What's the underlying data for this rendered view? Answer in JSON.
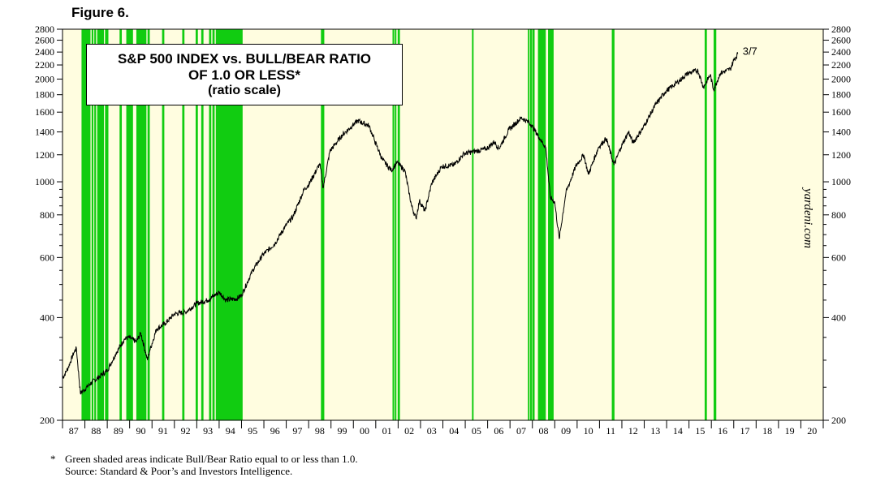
{
  "figure_label": "Figure 6.",
  "title_lines": [
    "S&P 500 INDEX vs. BULL/BEAR RATIO",
    "OF 1.0 OR LESS*",
    "(ratio scale)"
  ],
  "watermark": "yardeni.com",
  "footnote": {
    "star": "*",
    "line1": "Green shaded areas indicate Bull/Bear Ratio equal to or less than 1.0.",
    "line2": "Source: Standard & Poor’s and Investors Intelligence."
  },
  "colors": {
    "plot_bg": "#fffde0",
    "shade": "#11cc11",
    "line": "#000000"
  },
  "chart_data": {
    "type": "line",
    "title": "S&P 500 INDEX vs. BULL/BEAR RATIO OF 1.0 OR LESS*",
    "subtitle": "(ratio scale)",
    "xlabel": "",
    "ylabel": "",
    "y_scale": "log",
    "ylim": [
      200,
      2800
    ],
    "xlim": [
      1987.0,
      2021.0
    ],
    "y_ticks_labeled": [
      200,
      400,
      600,
      800,
      1000,
      1200,
      1400,
      1600,
      1800,
      2000,
      2200,
      2400,
      2600,
      2800
    ],
    "y_ticks_minor": [
      250,
      300,
      350,
      450,
      500,
      550,
      650,
      700,
      750,
      850,
      900,
      950
    ],
    "x_tick_labels": [
      "87",
      "88",
      "89",
      "90",
      "91",
      "92",
      "93",
      "94",
      "95",
      "96",
      "97",
      "98",
      "99",
      "00",
      "01",
      "02",
      "03",
      "04",
      "05",
      "06",
      "07",
      "08",
      "09",
      "10",
      "11",
      "12",
      "13",
      "14",
      "15",
      "16",
      "17",
      "18",
      "19",
      "20"
    ],
    "x_tick_years": [
      1987,
      1988,
      1989,
      1990,
      1991,
      1992,
      1993,
      1994,
      1995,
      1996,
      1997,
      1998,
      1999,
      2000,
      2001,
      2002,
      2003,
      2004,
      2005,
      2006,
      2007,
      2008,
      2009,
      2010,
      2011,
      2012,
      2013,
      2014,
      2015,
      2016,
      2017,
      2018,
      2019,
      2020
    ],
    "series": [
      {
        "values": [
          [
            1987.0,
            265
          ],
          [
            1987.25,
            285
          ],
          [
            1987.5,
            315
          ],
          [
            1987.62,
            325
          ],
          [
            1987.8,
            240
          ],
          [
            1987.95,
            245
          ],
          [
            1988.3,
            258
          ],
          [
            1988.7,
            270
          ],
          [
            1989.0,
            280
          ],
          [
            1989.4,
            315
          ],
          [
            1989.75,
            345
          ],
          [
            1989.95,
            350
          ],
          [
            1990.3,
            340
          ],
          [
            1990.5,
            360
          ],
          [
            1990.8,
            300
          ],
          [
            1990.9,
            320
          ],
          [
            1991.2,
            370
          ],
          [
            1991.6,
            385
          ],
          [
            1992.0,
            410
          ],
          [
            1992.5,
            415
          ],
          [
            1993.0,
            440
          ],
          [
            1993.5,
            450
          ],
          [
            1994.0,
            475
          ],
          [
            1994.3,
            450
          ],
          [
            1994.8,
            455
          ],
          [
            1995.0,
            465
          ],
          [
            1995.5,
            550
          ],
          [
            1995.95,
            610
          ],
          [
            1996.5,
            660
          ],
          [
            1996.95,
            740
          ],
          [
            1997.3,
            790
          ],
          [
            1997.8,
            950
          ],
          [
            1998.0,
            980
          ],
          [
            1998.5,
            1130
          ],
          [
            1998.65,
            960
          ],
          [
            1998.95,
            1230
          ],
          [
            1999.5,
            1370
          ],
          [
            1999.95,
            1460
          ],
          [
            2000.2,
            1510
          ],
          [
            2000.7,
            1460
          ],
          [
            2000.95,
            1320
          ],
          [
            2001.3,
            1160
          ],
          [
            2001.7,
            1080
          ],
          [
            2001.95,
            1140
          ],
          [
            2002.3,
            1080
          ],
          [
            2002.6,
            850
          ],
          [
            2002.8,
            780
          ],
          [
            2002.95,
            880
          ],
          [
            2003.2,
            820
          ],
          [
            2003.5,
            990
          ],
          [
            2003.95,
            1110
          ],
          [
            2004.5,
            1120
          ],
          [
            2004.95,
            1210
          ],
          [
            2005.5,
            1230
          ],
          [
            2005.95,
            1250
          ],
          [
            2006.3,
            1310
          ],
          [
            2006.5,
            1250
          ],
          [
            2006.95,
            1420
          ],
          [
            2007.5,
            1540
          ],
          [
            2007.8,
            1500
          ],
          [
            2007.95,
            1470
          ],
          [
            2008.3,
            1350
          ],
          [
            2008.6,
            1260
          ],
          [
            2008.8,
            900
          ],
          [
            2009.0,
            870
          ],
          [
            2009.2,
            680
          ],
          [
            2009.5,
            930
          ],
          [
            2009.95,
            1115
          ],
          [
            2010.3,
            1200
          ],
          [
            2010.5,
            1050
          ],
          [
            2010.95,
            1260
          ],
          [
            2011.3,
            1340
          ],
          [
            2011.65,
            1120
          ],
          [
            2011.95,
            1260
          ],
          [
            2012.3,
            1400
          ],
          [
            2012.5,
            1300
          ],
          [
            2012.95,
            1440
          ],
          [
            2013.5,
            1680
          ],
          [
            2013.95,
            1840
          ],
          [
            2014.5,
            1960
          ],
          [
            2014.95,
            2080
          ],
          [
            2015.4,
            2120
          ],
          [
            2015.65,
            1890
          ],
          [
            2015.95,
            2060
          ],
          [
            2016.1,
            1860
          ],
          [
            2016.4,
            2080
          ],
          [
            2016.85,
            2140
          ],
          [
            2017.0,
            2270
          ],
          [
            2017.18,
            2370
          ]
        ]
      }
    ],
    "end_label": "3/7",
    "shaded_periods": [
      [
        1987.85,
        1988.25
      ],
      [
        1988.3,
        1988.38
      ],
      [
        1988.42,
        1988.5
      ],
      [
        1988.55,
        1988.85
      ],
      [
        1988.9,
        1989.05
      ],
      [
        1989.55,
        1989.65
      ],
      [
        1989.85,
        1990.15
      ],
      [
        1990.3,
        1990.75
      ],
      [
        1990.8,
        1990.9
      ],
      [
        1991.45,
        1991.55
      ],
      [
        1992.35,
        1992.45
      ],
      [
        1992.95,
        1993.05
      ],
      [
        1993.2,
        1993.3
      ],
      [
        1993.55,
        1993.65
      ],
      [
        1993.7,
        1993.8
      ],
      [
        1993.85,
        1995.05
      ],
      [
        1998.55,
        1998.7
      ],
      [
        2001.75,
        2001.82
      ],
      [
        2001.85,
        2001.9
      ],
      [
        2001.98,
        2002.08
      ],
      [
        2005.3,
        2005.35
      ],
      [
        2007.8,
        2007.85
      ],
      [
        2007.9,
        2007.98
      ],
      [
        2008.0,
        2008.1
      ],
      [
        2008.25,
        2008.6
      ],
      [
        2008.7,
        2008.95
      ],
      [
        2011.55,
        2011.67
      ],
      [
        2015.7,
        2015.8
      ],
      [
        2016.1,
        2016.22
      ]
    ]
  }
}
